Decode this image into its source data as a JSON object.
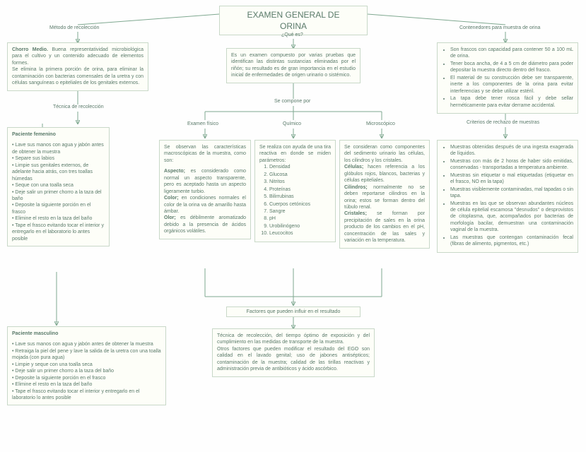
{
  "title": "EXAMEN GENERAL DE ORINA",
  "labels": {
    "metodo": "Método de recolección",
    "contenedores": "Contenedores para muestra de orina",
    "que_es": "¿Qué es?",
    "tecnica": "Técnica de recolección",
    "se_compone": "Se compone por",
    "fisico": "Examen físico",
    "quimico": "Químico",
    "microscopico": "Microscópico",
    "criterios": "Criterios de rechazo de muestras",
    "fem": "Paciente femenino",
    "masc": "Paciente masculino",
    "factores": "Factores que pueden influir en el resultado"
  },
  "chorro": {
    "h": "Chorro Medio.",
    "p1": "Buena representatividad microbiológica para el cultivo y un contenido adecuado de elementos formes.",
    "p2": "Se elimina la primera porción de orina, para eliminar la contaminación con bacterias comensales de la uretra y con células sanguíneas o epiteliales de los genitales externos."
  },
  "quees_text": "Es un examen compuesto por varias pruebas que identifican las distintas sustancias eliminadas por el riñón; su resultado es de gran importancia en el estudio inicial de enfermedades de origen urinario o sistémico.",
  "contenedores_items": [
    "Son frascos con capacidad para contener 50 a 100 mL de orina.",
    "Tener boca ancha, de 4 a 5 cm de diámetro para poder depositar la muestra directo dentro del frasco.",
    "El material de su construcción debe ser transparente, inerte a los componentes de la orina para evitar interferencias y se debe utilizar estéril.",
    "La tapa debe tener rosca fácil y debe sellar herméticamente para evitar derrame accidental."
  ],
  "fem_items": [
    "Lave sus manos con agua y jabón antes de obtener la muestra",
    "Separe sus labios",
    "Limpie sus genitales externos, de adelante hacia atrás, con tres toallas húmedas",
    "Seque con una toalla seca",
    "Deje salir un primer chorro a la taza del baño",
    "Deposite la siguiente porción en el frasco",
    "Elimine el resto en la taza del baño",
    "Tape el frasco evitando tocar el interior y entregarlo en el laboratorio lo antes posible"
  ],
  "masc_items": [
    "Lave sus manos con agua y jabón antes de obtener la muestra",
    "Retraiga la piel del pene y lave la salida de la uretra con una toalla mojada (con pura agua)",
    "Limpie y seque con una toalla seca",
    "Deje salir un primer chorro a la taza del baño",
    "Deposite la siguiente porción en el frasco",
    "Elimine el resto en la taza del baño",
    "Tape el frasco evitando tocar el interior y entregarlo en el laboratorio lo antes posible"
  ],
  "fisico": {
    "intro": "Se observan las características macroscópicas de la muestra, como son:",
    "aspecto_h": "Aspecto;",
    "aspecto": " es considerado como normal un aspecto transparente, pero es aceptado hasta un aspecto ligeramente turbio.",
    "color_h": "Color;",
    "color": " en condiciones normales el color de la orina va de amarillo hasta ámbar.",
    "olor_h": "Olor;",
    "olor": " es débilmente aromatizado debido a la presencia de ácidos orgánicos volátiles."
  },
  "quimico": {
    "intro": "Se realiza con ayuda de una tira reactiva en donde se miden parámetros:",
    "items": [
      "Densidad",
      "Glucosa",
      "Nitritos",
      "Proteínas",
      "Bilirrubinas",
      "Cuerpos cetónicos",
      "Sangre",
      "pH",
      "Urobilinógeno",
      "Leucocitos"
    ]
  },
  "micro": {
    "intro": "Se consideran como componentes del sedimento urinario las células, los cilindros y los cristales.",
    "cel_h": "Células;",
    "cel": " hacen referencia a los glóbulos rojos, blancos, bacterias y células epiteliales.",
    "cil_h": "Cilindros;",
    "cil": " normalmente no se deben reportarse cilindros en la orina; estos se forman dentro del túbulo renal.",
    "cri_h": "Cristales;",
    "cri": " se forman por precipitación de sales en la orina producto de los cambios en el pH, concentración de las sales y variación en la temperatura."
  },
  "criterios_items": [
    "Muestras obtenidas después de una ingesta exagerada de líquidos.",
    "Muestras con más de 2 horas de haber sido emitidas, conservadas - transportadas a temperatura ambiente.",
    "Muestras sin etiquetar o mal etiquetadas (etiquetar en el frasco, NO en la tapa)",
    "Muestras visiblemente contaminadas, mal tapadas o sin tapa.",
    "Muestras en las que se observan abundantes núcleos de célula epitelial escamosa \"desnudos\" o desprovistos de citoplasma, que, acompañados por bacterias de morfología bacilar, demuestran una contaminación vaginal de la muestra.",
    "Las muestras que contengan contaminación fecal (fibras de alimento, pigmentos, etc.)"
  ],
  "factores": {
    "p1": "Técnica de recolección, del tiempo óptimo de exposición y del cumplimiento en las medidas de transporte de la muestra.",
    "p2": "Otros factores que pueden modificar el resultado del EGO son calidad en el lavado genital; uso de jabones antisépticos; contaminación de la muestra; calidad de las tirillas reactivas y administración previa de antibióticos y ácido ascórbico."
  }
}
